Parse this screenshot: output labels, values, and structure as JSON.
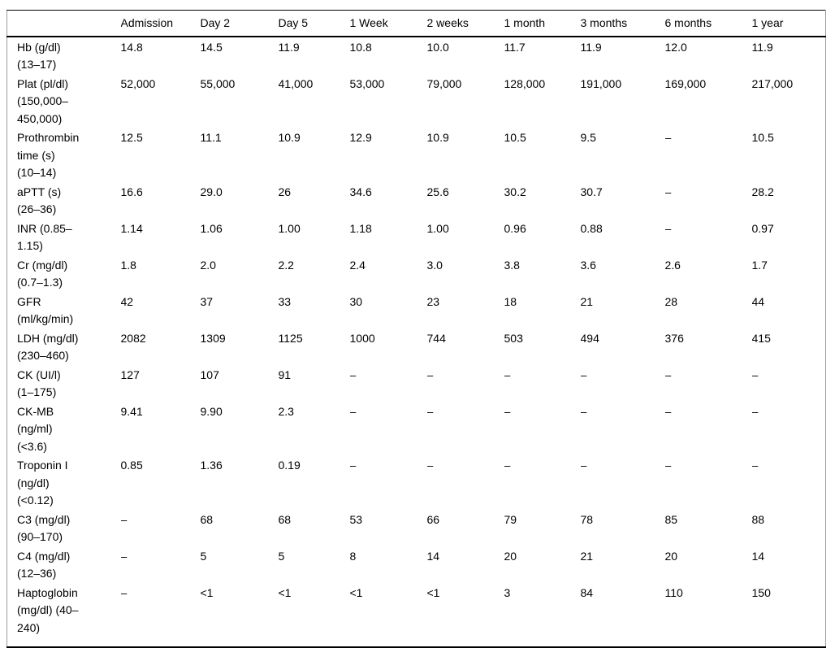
{
  "table": {
    "name": "laboratory-values-over-time",
    "header": [
      "",
      "Admission",
      "Day 2",
      "Day 5",
      "1 Week",
      "2 weeks",
      "1 month",
      "3 months",
      "6 months",
      "1 year"
    ],
    "rows": [
      {
        "label": "Hb (g/dl)\n(13–17)",
        "values": [
          "14.8",
          "14.5",
          "11.9",
          "10.8",
          "10.0",
          "11.7",
          "11.9",
          "12.0",
          "11.9"
        ]
      },
      {
        "label": "Plat (pl/dl)\n(150,000–\n450,000)",
        "values": [
          "52,000",
          "55,000",
          "41,000",
          "53,000",
          "79,000",
          "128,000",
          "191,000",
          "169,000",
          "217,000"
        ]
      },
      {
        "label": "Prothrombin\ntime (s)\n(10–14)",
        "values": [
          "12.5",
          "11.1",
          "10.9",
          "12.9",
          "10.9",
          "10.5",
          "9.5",
          "–",
          "10.5"
        ]
      },
      {
        "label": "aPTT (s)\n(26–36)",
        "values": [
          "16.6",
          "29.0",
          "26",
          "34.6",
          "25.6",
          "30.2",
          "30.7",
          "–",
          "28.2"
        ]
      },
      {
        "label": "INR (0.85–\n1.15)",
        "values": [
          "1.14",
          "1.06",
          "1.00",
          "1.18",
          "1.00",
          "0.96",
          "0.88",
          "–",
          "0.97"
        ]
      },
      {
        "label": "Cr (mg/dl)\n(0.7–1.3)",
        "values": [
          "1.8",
          "2.0",
          "2.2",
          "2.4",
          "3.0",
          "3.8",
          "3.6",
          "2.6",
          "1.7"
        ]
      },
      {
        "label": "GFR\n(ml/kg/min)",
        "values": [
          "42",
          "37",
          "33",
          "30",
          "23",
          "18",
          "21",
          "28",
          "44"
        ]
      },
      {
        "label": "LDH (mg/dl)\n(230–460)",
        "values": [
          "2082",
          "1309",
          "1125",
          "1000",
          "744",
          "503",
          "494",
          "376",
          "415"
        ]
      },
      {
        "label": "CK (UI/l)\n(1–175)",
        "values": [
          "127",
          "107",
          "91",
          "–",
          "–",
          "–",
          "–",
          "–",
          "–"
        ]
      },
      {
        "label": "CK-MB\n(ng/ml)\n(<3.6)",
        "values": [
          "9.41",
          "9.90",
          "2.3",
          "–",
          "–",
          "–",
          "–",
          "–",
          "–"
        ]
      },
      {
        "label": "Troponin I\n(ng/dl)\n(<0.12)",
        "values": [
          "0.85",
          "1.36",
          "0.19",
          "–",
          "–",
          "–",
          "–",
          "–",
          "–"
        ]
      },
      {
        "label": "C3 (mg/dl)\n(90–170)",
        "values": [
          "–",
          "68",
          "68",
          "53",
          "66",
          "79",
          "78",
          "85",
          "88"
        ]
      },
      {
        "label": "C4 (mg/dl)\n(12–36)",
        "values": [
          "–",
          "5",
          "5",
          "8",
          "14",
          "20",
          "21",
          "20",
          "14"
        ]
      },
      {
        "label": "Haptoglobin\n(mg/dl) (40–\n240)",
        "values": [
          "–",
          "<1",
          "<1",
          "<1",
          "<1",
          "3",
          "84",
          "110",
          "150"
        ]
      }
    ]
  },
  "colors": {
    "background": "#ffffff",
    "text": "#000000",
    "horizontal_rule": "#000000",
    "side_border": "#9b9b9b"
  }
}
